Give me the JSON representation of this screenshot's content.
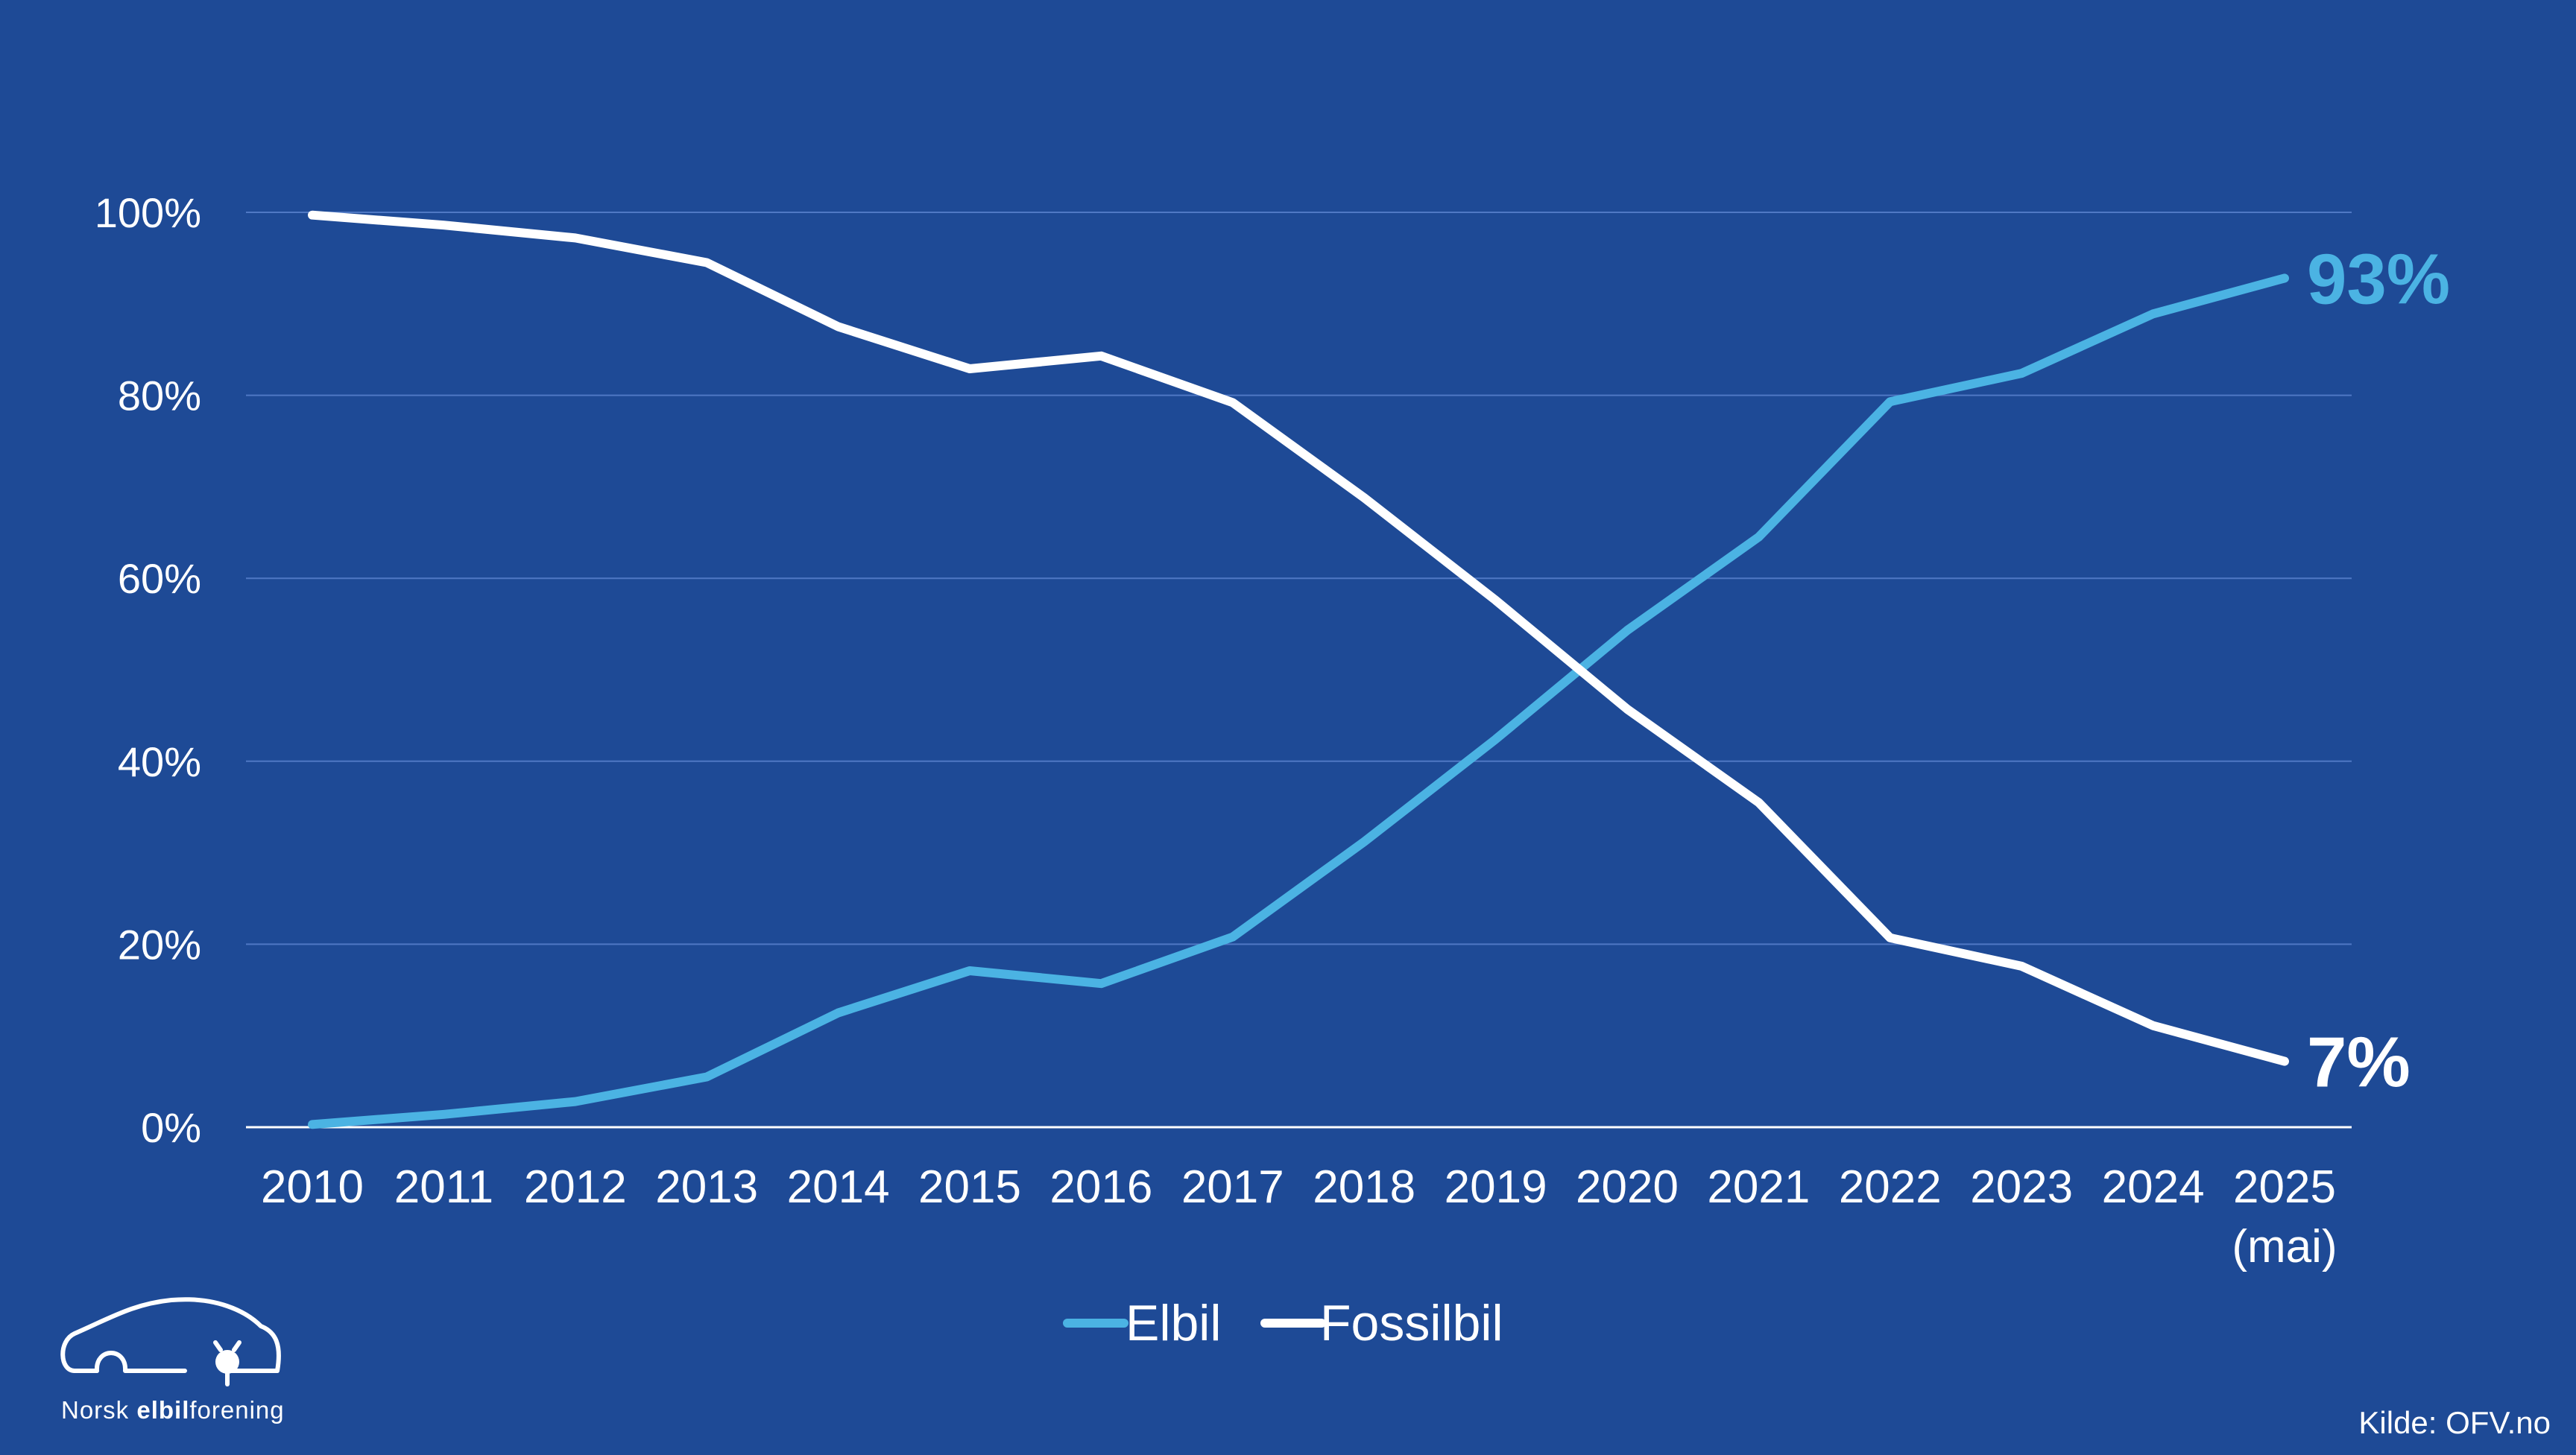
{
  "colors": {
    "background": "#1e4a96",
    "gridline": "#4f78c4",
    "axis": "#ffffff",
    "elbil": "#4bb3e3",
    "fossilbil": "#ffffff"
  },
  "chart_data": {
    "type": "line",
    "x": [
      "2010",
      "2011",
      "2012",
      "2013",
      "2014",
      "2015",
      "2016",
      "2017",
      "2018",
      "2019",
      "2020",
      "2021",
      "2022",
      "2023",
      "2024",
      "2025"
    ],
    "x_sublabels": {
      "2025": "(mai)"
    },
    "series": [
      {
        "name": "Elbil",
        "color": "#4bb3e3",
        "values": [
          0.3,
          1.4,
          2.8,
          5.5,
          12.5,
          17.1,
          15.7,
          20.8,
          31.2,
          42.4,
          54.3,
          64.5,
          79.3,
          82.4,
          88.9,
          92.8
        ]
      },
      {
        "name": "Fossilbil",
        "color": "#ffffff",
        "values": [
          99.7,
          98.6,
          97.2,
          94.5,
          87.5,
          82.9,
          84.3,
          79.2,
          68.8,
          57.6,
          45.7,
          35.5,
          20.7,
          17.6,
          11.1,
          7.2
        ]
      }
    ],
    "ylim": [
      0,
      100
    ],
    "yticks": [
      0,
      20,
      40,
      60,
      80,
      100
    ],
    "ytick_labels": [
      "0%",
      "20%",
      "40%",
      "60%",
      "80%",
      "100%"
    ],
    "grid": true,
    "legend_position": "bottom-center",
    "end_labels": [
      {
        "series": "Elbil",
        "text": "93%"
      },
      {
        "series": "Fossilbil",
        "text": "7%"
      }
    ]
  },
  "legend": [
    {
      "label": "Elbil",
      "color": "#4bb3e3"
    },
    {
      "label": "Fossilbil",
      "color": "#ffffff"
    }
  ],
  "logo": {
    "text_regular_1": "Norsk ",
    "text_bold": "elbil",
    "text_regular_2": "forening"
  },
  "source": "Kilde: OFV.no"
}
